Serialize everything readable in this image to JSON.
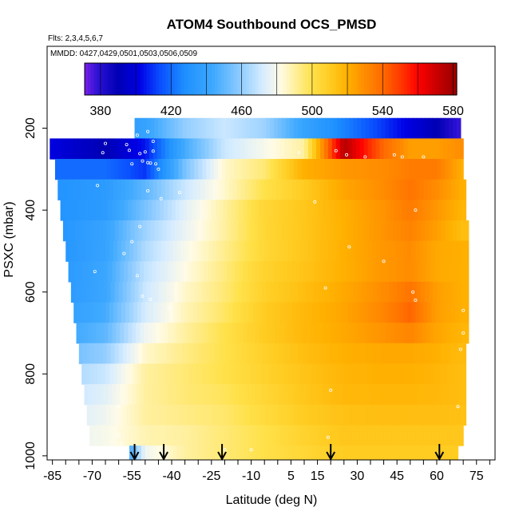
{
  "chart_data": {
    "type": "heatmap",
    "title": "ATOM4 Southbound OCS_PMSD",
    "flights_note": "Flts: 2,3,4,5,6,7",
    "dates_note": "MMDD: 0427,0429,0501,0503,0506,0509",
    "xlabel": "Latitude (deg N)",
    "ylabel": "PSXC (mbar)",
    "xlim": [
      -87,
      82
    ],
    "ylim": [
      1010,
      0
    ],
    "x_ticks": [
      -85,
      -70,
      -55,
      -40,
      -25,
      -10,
      5,
      15,
      30,
      45,
      60,
      75
    ],
    "x_minor_step": 5,
    "y_ticks": [
      200,
      400,
      600,
      800,
      1000
    ],
    "colorbar": {
      "range": [
        371,
        582
      ],
      "ticks": [
        380,
        420,
        460,
        500,
        540,
        580
      ],
      "stops": [
        {
          "v": 371,
          "c": "#7a1fe8"
        },
        {
          "v": 378,
          "c": "#2e12d6"
        },
        {
          "v": 390,
          "c": "#0000b4"
        },
        {
          "v": 402,
          "c": "#0000e6"
        },
        {
          "v": 414,
          "c": "#0a50ff"
        },
        {
          "v": 428,
          "c": "#1e90ff"
        },
        {
          "v": 444,
          "c": "#3fa9ff"
        },
        {
          "v": 460,
          "c": "#93ceff"
        },
        {
          "v": 472,
          "c": "#d6ecff"
        },
        {
          "v": 482,
          "c": "#fffbe6"
        },
        {
          "v": 490,
          "c": "#fff0a0"
        },
        {
          "v": 500,
          "c": "#ffe14a"
        },
        {
          "v": 510,
          "c": "#ffcc22"
        },
        {
          "v": 520,
          "c": "#ffb000"
        },
        {
          "v": 530,
          "c": "#ff8c00"
        },
        {
          "v": 540,
          "c": "#ff6a00"
        },
        {
          "v": 550,
          "c": "#ff3a00"
        },
        {
          "v": 560,
          "c": "#ff0000"
        },
        {
          "v": 570,
          "c": "#cc0000"
        },
        {
          "v": 582,
          "c": "#960000"
        }
      ]
    },
    "pressure_levels": [
      200,
      250,
      300,
      350,
      400,
      450,
      500,
      550,
      600,
      650,
      700,
      750,
      800,
      850,
      900,
      950,
      1000
    ],
    "level_lat_min": [
      -54,
      -86,
      -84,
      -83,
      -82,
      -81,
      -80,
      -79,
      -78,
      -77,
      -76,
      -75,
      -74,
      -73,
      -72,
      -71,
      -56
    ],
    "level_lat_max": [
      69,
      70,
      70,
      71,
      71,
      72,
      72,
      72,
      72,
      72,
      72,
      71,
      71,
      71,
      71,
      70,
      68
    ],
    "profile_lats": [
      -85,
      -65,
      -50,
      -35,
      -20,
      -5,
      10,
      25,
      40,
      50,
      60,
      70
    ],
    "ocs_grid": [
      [
        430,
        430,
        440,
        460,
        470,
        462,
        440,
        425,
        410,
        400,
        390,
        375
      ],
      [
        400,
        390,
        405,
        445,
        470,
        480,
        490,
        575,
        540,
        525,
        525,
        530
      ],
      [
        420,
        420,
        410,
        455,
        485,
        495,
        520,
        527,
        530,
        535,
        535,
        520
      ],
      [
        430,
        435,
        450,
        470,
        485,
        500,
        510,
        523,
        530,
        537,
        530,
        520
      ],
      [
        430,
        435,
        455,
        475,
        490,
        505,
        512,
        520,
        528,
        535,
        527,
        518
      ],
      [
        430,
        440,
        462,
        477,
        490,
        505,
        512,
        520,
        528,
        533,
        525,
        515
      ],
      [
        430,
        440,
        465,
        480,
        492,
        505,
        512,
        520,
        527,
        530,
        522,
        520
      ],
      [
        432,
        442,
        468,
        482,
        494,
        507,
        513,
        520,
        527,
        530,
        522,
        520
      ],
      [
        432,
        442,
        470,
        485,
        495,
        508,
        515,
        522,
        530,
        537,
        525,
        520
      ],
      [
        435,
        445,
        472,
        487,
        497,
        510,
        517,
        523,
        532,
        541,
        525,
        520
      ],
      [
        440,
        450,
        478,
        490,
        500,
        510,
        517,
        522,
        528,
        532,
        523,
        518
      ],
      [
        450,
        460,
        485,
        493,
        500,
        508,
        515,
        520,
        522,
        522,
        520,
        516
      ],
      [
        460,
        470,
        490,
        495,
        500,
        507,
        513,
        518,
        520,
        520,
        518,
        515
      ],
      [
        465,
        475,
        490,
        495,
        498,
        505,
        512,
        517,
        518,
        518,
        517,
        515
      ],
      [
        470,
        478,
        490,
        493,
        496,
        503,
        510,
        514,
        515,
        515,
        515,
        514
      ],
      [
        475,
        480,
        488,
        490,
        495,
        500,
        507,
        512,
        512,
        512,
        512,
        512
      ],
      [
        390,
        395,
        478,
        490,
        495,
        500,
        505,
        510,
        510,
        510,
        510,
        510
      ]
    ],
    "profile_arrow_lats": [
      -54,
      -43,
      -21,
      20,
      61
    ],
    "obs_points": [
      {
        "lat": -63,
        "p": 200
      },
      {
        "lat": -55,
        "p": 214
      },
      {
        "lat": -53,
        "p": 217
      },
      {
        "lat": -49,
        "p": 208
      },
      {
        "lat": -57,
        "p": 240
      },
      {
        "lat": -56,
        "p": 254
      },
      {
        "lat": -52,
        "p": 262
      },
      {
        "lat": -50,
        "p": 258
      },
      {
        "lat": -47,
        "p": 256
      },
      {
        "lat": -47,
        "p": 232
      },
      {
        "lat": -55,
        "p": 287
      },
      {
        "lat": -51,
        "p": 280
      },
      {
        "lat": -49,
        "p": 284
      },
      {
        "lat": -48,
        "p": 285
      },
      {
        "lat": -46,
        "p": 287
      },
      {
        "lat": -65,
        "p": 237
      },
      {
        "lat": -66,
        "p": 260
      },
      {
        "lat": -45,
        "p": 300
      },
      {
        "lat": -68,
        "p": 340
      },
      {
        "lat": -49,
        "p": 353
      },
      {
        "lat": -37,
        "p": 357
      },
      {
        "lat": -44,
        "p": 372
      },
      {
        "lat": -52,
        "p": 440
      },
      {
        "lat": -55,
        "p": 477
      },
      {
        "lat": -58,
        "p": 506
      },
      {
        "lat": -69,
        "p": 550
      },
      {
        "lat": -53,
        "p": 560
      },
      {
        "lat": -51,
        "p": 610
      },
      {
        "lat": -48,
        "p": 618
      },
      {
        "lat": -41,
        "p": 640
      },
      {
        "lat": 8,
        "p": 260
      },
      {
        "lat": 22,
        "p": 255
      },
      {
        "lat": 26,
        "p": 265
      },
      {
        "lat": 33,
        "p": 270
      },
      {
        "lat": 44,
        "p": 265
      },
      {
        "lat": 47,
        "p": 270
      },
      {
        "lat": 55,
        "p": 270
      },
      {
        "lat": 14,
        "p": 380
      },
      {
        "lat": 52,
        "p": 400
      },
      {
        "lat": 27,
        "p": 490
      },
      {
        "lat": 40,
        "p": 525
      },
      {
        "lat": 18,
        "p": 590
      },
      {
        "lat": 51,
        "p": 600
      },
      {
        "lat": 52,
        "p": 620
      },
      {
        "lat": 70,
        "p": 645
      },
      {
        "lat": 70,
        "p": 700
      },
      {
        "lat": 69,
        "p": 740
      },
      {
        "lat": -60,
        "p": 880
      },
      {
        "lat": -60,
        "p": 950
      },
      {
        "lat": -59,
        "p": 970
      },
      {
        "lat": 19,
        "p": 955
      },
      {
        "lat": -20,
        "p": 985
      },
      {
        "lat": -10,
        "p": 985
      },
      {
        "lat": 20,
        "p": 840
      },
      {
        "lat": 68,
        "p": 880
      }
    ]
  }
}
